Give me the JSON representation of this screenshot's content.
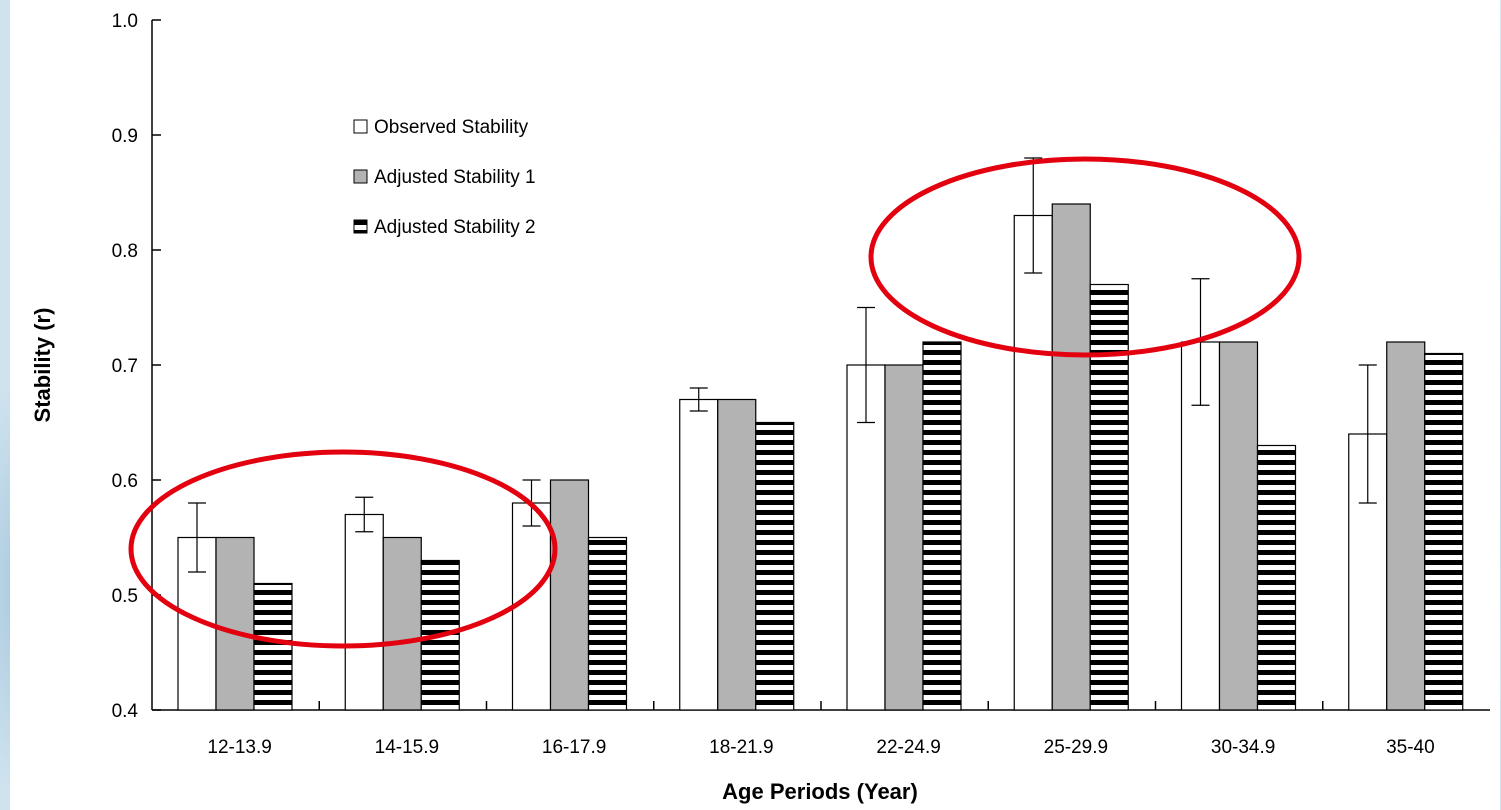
{
  "chart_data": {
    "type": "bar",
    "xlabel": "Age Periods (Year)",
    "ylabel": "Stability (r)",
    "ylim": [
      0.4,
      1.0
    ],
    "yticks": [
      "0.4",
      "0.5",
      "0.6",
      "0.7",
      "0.8",
      "0.9",
      "1.0"
    ],
    "categories": [
      "12-13.9",
      "14-15.9",
      "16-17.9",
      "18-21.9",
      "22-24.9",
      "25-29.9",
      "30-34.9",
      "35-40"
    ],
    "series": [
      {
        "name": "Observed Stability",
        "fill": "white",
        "values": [
          0.55,
          0.57,
          0.58,
          0.67,
          0.7,
          0.83,
          0.72,
          0.64
        ],
        "error_low": [
          0.52,
          0.555,
          0.56,
          0.66,
          0.65,
          0.78,
          0.665,
          0.58
        ],
        "error_high": [
          0.58,
          0.585,
          0.6,
          0.68,
          0.75,
          0.88,
          0.775,
          0.7
        ]
      },
      {
        "name": "Adjusted Stability 1",
        "fill": "gray",
        "values": [
          0.55,
          0.55,
          0.6,
          0.67,
          0.7,
          0.84,
          0.72,
          0.72
        ]
      },
      {
        "name": "Adjusted Stability 2",
        "fill": "horizontal-stripes",
        "values": [
          0.51,
          0.53,
          0.55,
          0.65,
          0.72,
          0.77,
          0.63,
          0.71
        ]
      }
    ],
    "legend_position": "top-left",
    "annotations": [
      {
        "shape": "ellipse",
        "color": "#e3000f",
        "covers": [
          "12-13.9",
          "14-15.9",
          "16-17.9"
        ]
      },
      {
        "shape": "ellipse",
        "color": "#e3000f",
        "covers": [
          "25-29.9"
        ]
      }
    ],
    "colors": {
      "gray_fill": "#b3b3b3",
      "annotation": "#e3000f",
      "background": "#cfe3ef"
    }
  }
}
